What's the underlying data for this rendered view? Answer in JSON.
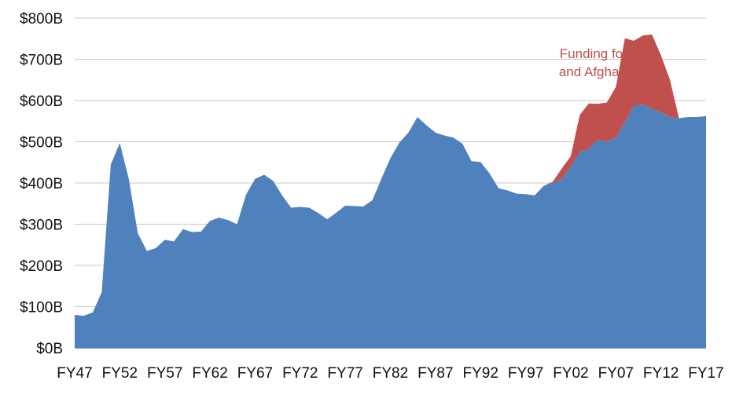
{
  "chart_data": {
    "type": "area",
    "title": "",
    "xlabel": "",
    "ylabel": "",
    "x_tick_labels": [
      "FY47",
      "FY52",
      "FY57",
      "FY62",
      "FY67",
      "FY72",
      "FY77",
      "FY82",
      "FY87",
      "FY92",
      "FY97",
      "FY02",
      "FY07",
      "FY12",
      "FY17"
    ],
    "y_tick_labels": [
      "$0B",
      "$100B",
      "$200B",
      "$300B",
      "$400B",
      "$500B",
      "$600B",
      "$700B",
      "$800B"
    ],
    "ylim": [
      0,
      800
    ],
    "xlim": [
      1947,
      2017
    ],
    "grid": "horizontal",
    "stacked": true,
    "x": [
      1947,
      1948,
      1949,
      1950,
      1951,
      1952,
      1953,
      1954,
      1955,
      1956,
      1957,
      1958,
      1959,
      1960,
      1961,
      1962,
      1963,
      1964,
      1965,
      1966,
      1967,
      1968,
      1969,
      1970,
      1971,
      1972,
      1973,
      1974,
      1975,
      1976,
      1977,
      1978,
      1979,
      1980,
      1981,
      1982,
      1983,
      1984,
      1985,
      1986,
      1987,
      1988,
      1989,
      1990,
      1991,
      1992,
      1993,
      1994,
      1995,
      1996,
      1997,
      1998,
      1999,
      2000,
      2001,
      2002,
      2003,
      2004,
      2005,
      2006,
      2007,
      2008,
      2009,
      2010,
      2011,
      2012,
      2013,
      2014,
      2015,
      2016,
      2017
    ],
    "series": [
      {
        "name": "",
        "color": "#4f81bd",
        "values": [
          80,
          78,
          86,
          135,
          445,
          497,
          410,
          278,
          235,
          242,
          262,
          258,
          288,
          281,
          282,
          308,
          316,
          310,
          300,
          372,
          410,
          420,
          405,
          370,
          340,
          342,
          340,
          327,
          312,
          328,
          345,
          344,
          343,
          358,
          410,
          460,
          498,
          522,
          560,
          540,
          522,
          515,
          510,
          495,
          453,
          451,
          423,
          387,
          382,
          374,
          373,
          370,
          393,
          400,
          410,
          440,
          475,
          483,
          505,
          500,
          510,
          547,
          587,
          591,
          580,
          572,
          560,
          557,
          560,
          560,
          562
        ]
      },
      {
        "name": "Funding for Iraq and Afghanistan",
        "color": "#c0504d",
        "values": [
          0,
          0,
          0,
          0,
          0,
          0,
          0,
          0,
          0,
          0,
          0,
          0,
          0,
          0,
          0,
          0,
          0,
          0,
          0,
          0,
          0,
          0,
          0,
          0,
          0,
          0,
          0,
          0,
          0,
          0,
          0,
          0,
          0,
          0,
          0,
          0,
          0,
          0,
          0,
          0,
          0,
          0,
          0,
          0,
          0,
          0,
          0,
          0,
          0,
          0,
          0,
          0,
          0,
          3,
          25,
          25,
          90,
          110,
          87,
          95,
          123,
          204,
          158,
          167,
          180,
          138,
          90,
          0,
          0,
          0,
          0
        ]
      }
    ],
    "annotations": [
      {
        "text_lines": [
          "Funding for Iraq",
          "and Afghanistan"
        ],
        "color": "#c0504d",
        "at_x": 2006,
        "at_y": 703
      }
    ]
  }
}
